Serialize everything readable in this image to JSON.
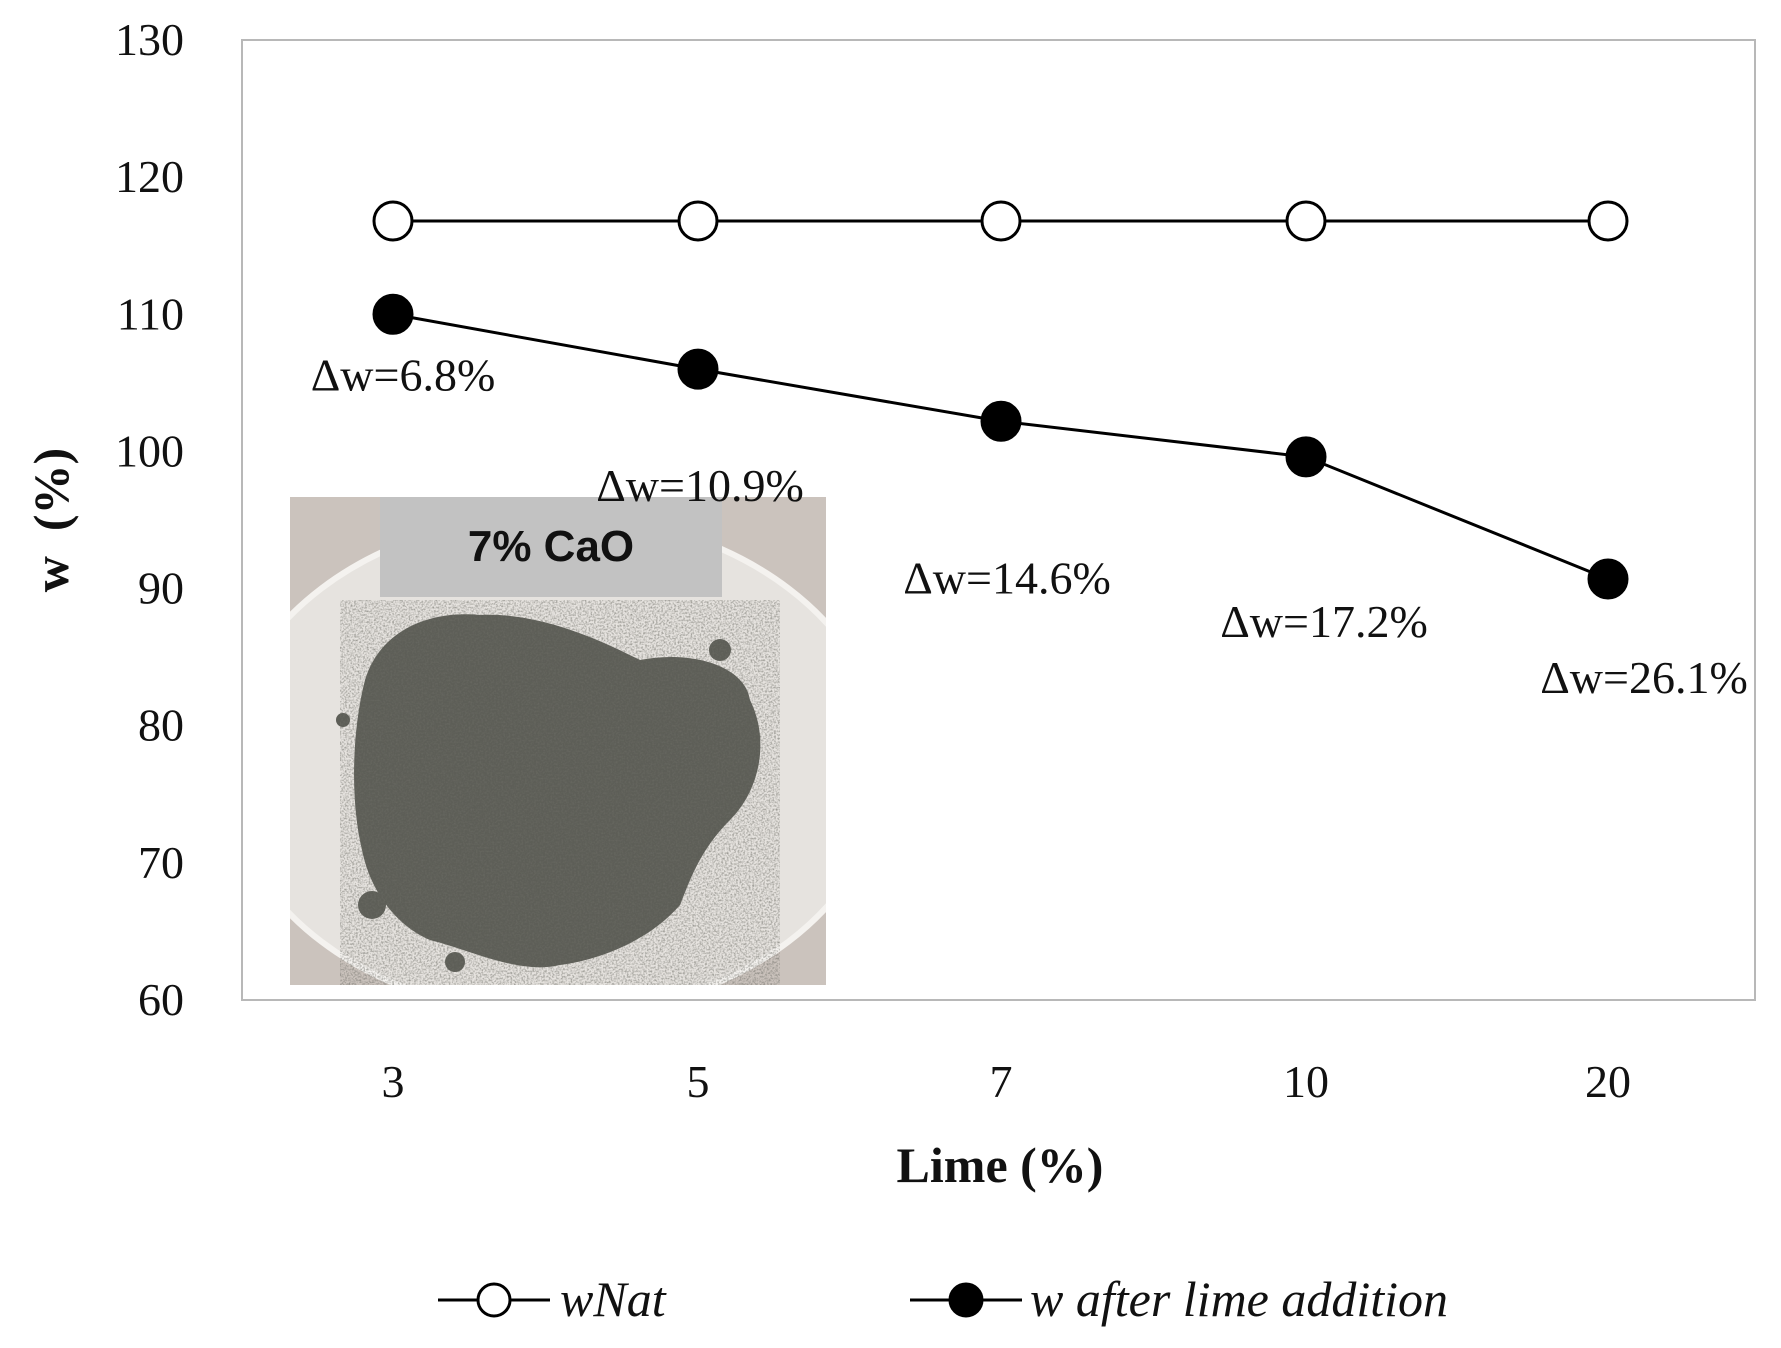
{
  "chart_data": {
    "type": "line",
    "categories": [
      "3",
      "5",
      "7",
      "10",
      "20"
    ],
    "xlabel": "Lime (%)",
    "ylabel": "w  (%)",
    "ylim": [
      60,
      130
    ],
    "yticks": [
      60,
      70,
      80,
      90,
      100,
      110,
      120,
      130
    ],
    "grid": false,
    "legend_position": "bottom",
    "series": [
      {
        "name": "wNat",
        "marker": "open-circle",
        "color": "#000000",
        "values": [
          116.8,
          116.8,
          116.8,
          116.8,
          116.8
        ]
      },
      {
        "name": "w after lime addition",
        "marker": "filled-circle",
        "color": "#000000",
        "values": [
          110.0,
          106.0,
          102.2,
          99.6,
          90.7
        ]
      }
    ],
    "annotations": [
      "Δw=6.8%",
      "Δw=10.9%",
      "Δw=14.6%",
      "Δw=17.2%",
      "Δw=26.1%"
    ],
    "inset_photo": {
      "caption": "7% CaO",
      "colors": {
        "background": "#cbc3bd",
        "caption_band": "#c2c2c2",
        "dish": "#e6e3df",
        "soil": "#5d5e57"
      }
    }
  }
}
